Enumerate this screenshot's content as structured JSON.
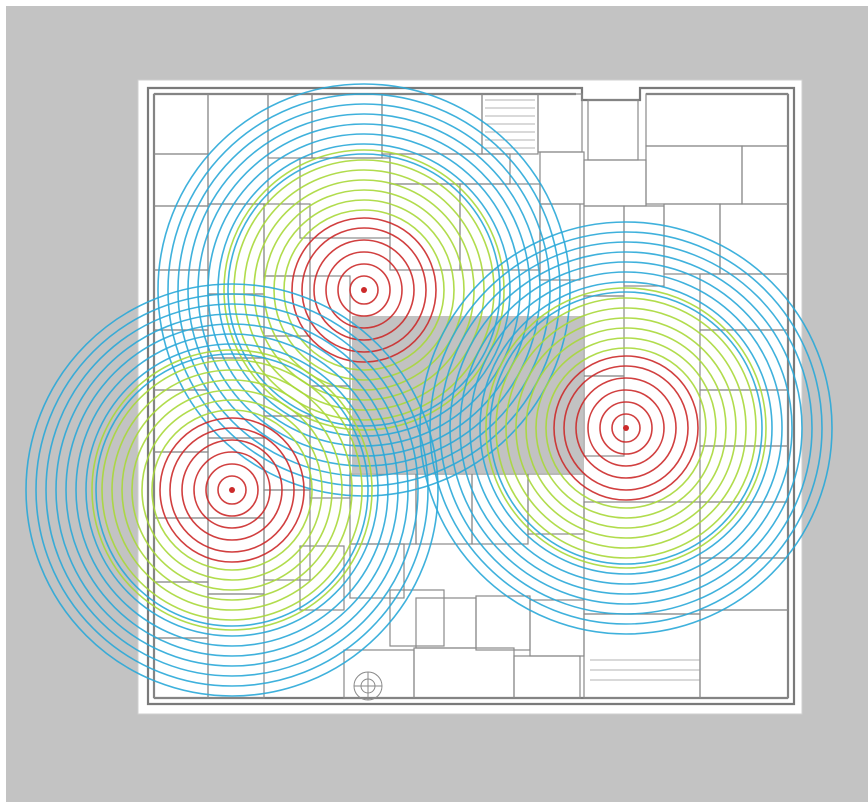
{
  "diagram": {
    "type": "wifi-coverage-heatmap-on-floor-plan",
    "colors": {
      "background": "#c3c3c3",
      "paper": "#ffffff",
      "wall": "#7a7a7a",
      "courtyard": "#b9b9b9",
      "strong_signal": "#cc2a2a",
      "medium_signal": "#a9d83a",
      "weak_signal": "#2aa8d8"
    },
    "access_points": [
      {
        "id": "ap-north"
      },
      {
        "id": "ap-west"
      },
      {
        "id": "ap-east"
      }
    ],
    "signal_bands": [
      "strong",
      "medium",
      "weak"
    ]
  }
}
